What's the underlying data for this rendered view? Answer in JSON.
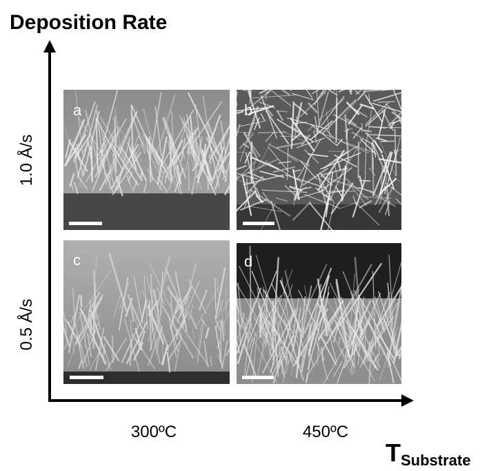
{
  "title": "Deposition Rate",
  "y_axis": {
    "rows": [
      "1.0 Å/s",
      "0.5 Å/s"
    ]
  },
  "x_axis": {
    "columns": [
      "300ºC",
      "450ºC"
    ],
    "label": "T",
    "label_subscript": "Substrate"
  },
  "panels": [
    {
      "label": "a"
    },
    {
      "label": "b"
    },
    {
      "label": "c"
    },
    {
      "label": "d"
    }
  ]
}
